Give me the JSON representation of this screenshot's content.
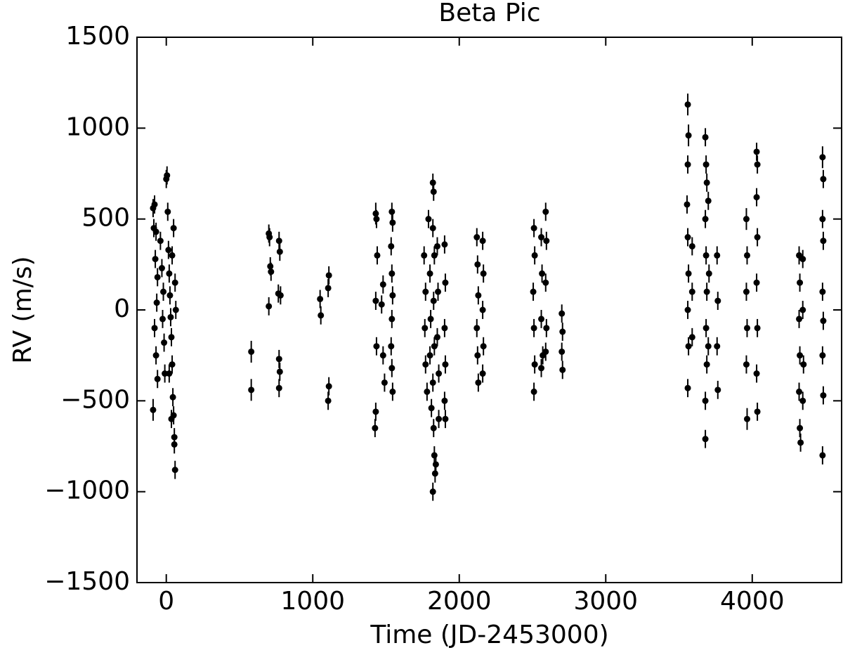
{
  "chart_data": {
    "type": "scatter",
    "title": "Beta Pic",
    "x_label": "Time (JD-2453000)",
    "y_label": "RV (m/s)",
    "color": "#000000",
    "xlim": [
      -200,
      4610
    ],
    "ylim": [
      -1500,
      1500
    ],
    "xticks": [
      0,
      1000,
      2000,
      3000,
      4000
    ],
    "yticks": [
      {
        "value": -1500,
        "label": "−1500"
      },
      {
        "value": -1000,
        "label": "−1000"
      },
      {
        "value": -500,
        "label": "−500"
      },
      0,
      500,
      1000,
      1500
    ],
    "points": [
      {
        "x": -90,
        "y": 560,
        "yerr": 50
      },
      {
        "x": -80,
        "y": 580,
        "yerr": 50
      },
      {
        "x": -85,
        "y": 450,
        "yerr": 50
      },
      {
        "x": -70,
        "y": 430,
        "yerr": 50
      },
      {
        "x": -75,
        "y": 280,
        "yerr": 50
      },
      {
        "x": -60,
        "y": 180,
        "yerr": 50
      },
      {
        "x": -65,
        "y": 40,
        "yerr": 50
      },
      {
        "x": -80,
        "y": -100,
        "yerr": 50
      },
      {
        "x": -70,
        "y": -250,
        "yerr": 50
      },
      {
        "x": -60,
        "y": -380,
        "yerr": 50
      },
      {
        "x": -90,
        "y": -550,
        "yerr": 60
      },
      {
        "x": -40,
        "y": 380,
        "yerr": 50
      },
      {
        "x": -30,
        "y": 230,
        "yerr": 50
      },
      {
        "x": -20,
        "y": 100,
        "yerr": 50
      },
      {
        "x": -25,
        "y": -50,
        "yerr": 50
      },
      {
        "x": -15,
        "y": -180,
        "yerr": 50
      },
      {
        "x": -10,
        "y": -350,
        "yerr": 50
      },
      {
        "x": 0,
        "y": 720,
        "yerr": 50
      },
      {
        "x": 5,
        "y": 740,
        "yerr": 50
      },
      {
        "x": 10,
        "y": 540,
        "yerr": 50
      },
      {
        "x": 15,
        "y": 330,
        "yerr": 50
      },
      {
        "x": 20,
        "y": 200,
        "yerr": 50
      },
      {
        "x": 25,
        "y": 80,
        "yerr": 50
      },
      {
        "x": 30,
        "y": -40,
        "yerr": 50
      },
      {
        "x": 35,
        "y": -150,
        "yerr": 50
      },
      {
        "x": 40,
        "y": -300,
        "yerr": 50
      },
      {
        "x": 45,
        "y": -480,
        "yerr": 50
      },
      {
        "x": 50,
        "y": -580,
        "yerr": 50
      },
      {
        "x": 55,
        "y": -700,
        "yerr": 50
      },
      {
        "x": 55,
        "y": -740,
        "yerr": 50
      },
      {
        "x": 60,
        "y": -880,
        "yerr": 50
      },
      {
        "x": 50,
        "y": 450,
        "yerr": 50
      },
      {
        "x": 40,
        "y": 300,
        "yerr": 50
      },
      {
        "x": 60,
        "y": 150,
        "yerr": 50
      },
      {
        "x": 65,
        "y": 0,
        "yerr": 50
      },
      {
        "x": 35,
        "y": -600,
        "yerr": 50
      },
      {
        "x": 20,
        "y": -350,
        "yerr": 50
      },
      {
        "x": 580,
        "y": -230,
        "yerr": 60
      },
      {
        "x": 580,
        "y": -440,
        "yerr": 60
      },
      {
        "x": 700,
        "y": 420,
        "yerr": 50
      },
      {
        "x": 705,
        "y": 400,
        "yerr": 50
      },
      {
        "x": 710,
        "y": 240,
        "yerr": 50
      },
      {
        "x": 715,
        "y": 210,
        "yerr": 50
      },
      {
        "x": 700,
        "y": 20,
        "yerr": 50
      },
      {
        "x": 770,
        "y": 380,
        "yerr": 50
      },
      {
        "x": 775,
        "y": 320,
        "yerr": 50
      },
      {
        "x": 765,
        "y": 90,
        "yerr": 50
      },
      {
        "x": 780,
        "y": 80,
        "yerr": 50
      },
      {
        "x": 770,
        "y": -270,
        "yerr": 50
      },
      {
        "x": 775,
        "y": -340,
        "yerr": 50
      },
      {
        "x": 770,
        "y": -430,
        "yerr": 50
      },
      {
        "x": 1050,
        "y": 60,
        "yerr": 50
      },
      {
        "x": 1055,
        "y": -30,
        "yerr": 50
      },
      {
        "x": 1110,
        "y": 190,
        "yerr": 50
      },
      {
        "x": 1105,
        "y": 120,
        "yerr": 50
      },
      {
        "x": 1110,
        "y": -420,
        "yerr": 50
      },
      {
        "x": 1105,
        "y": -500,
        "yerr": 50
      },
      {
        "x": 1430,
        "y": 530,
        "yerr": 60
      },
      {
        "x": 1435,
        "y": 500,
        "yerr": 50
      },
      {
        "x": 1440,
        "y": 300,
        "yerr": 50
      },
      {
        "x": 1430,
        "y": 50,
        "yerr": 50
      },
      {
        "x": 1435,
        "y": -200,
        "yerr": 50
      },
      {
        "x": 1430,
        "y": -560,
        "yerr": 50
      },
      {
        "x": 1425,
        "y": -650,
        "yerr": 50
      },
      {
        "x": 1480,
        "y": 140,
        "yerr": 50
      },
      {
        "x": 1470,
        "y": 30,
        "yerr": 50
      },
      {
        "x": 1490,
        "y": -400,
        "yerr": 50
      },
      {
        "x": 1480,
        "y": -250,
        "yerr": 50
      },
      {
        "x": 1540,
        "y": 540,
        "yerr": 50
      },
      {
        "x": 1545,
        "y": 480,
        "yerr": 50
      },
      {
        "x": 1535,
        "y": 350,
        "yerr": 50
      },
      {
        "x": 1540,
        "y": 200,
        "yerr": 50
      },
      {
        "x": 1545,
        "y": 80,
        "yerr": 50
      },
      {
        "x": 1540,
        "y": -50,
        "yerr": 50
      },
      {
        "x": 1535,
        "y": -200,
        "yerr": 50
      },
      {
        "x": 1540,
        "y": -320,
        "yerr": 50
      },
      {
        "x": 1545,
        "y": -450,
        "yerr": 50
      },
      {
        "x": 1760,
        "y": 300,
        "yerr": 50
      },
      {
        "x": 1770,
        "y": 100,
        "yerr": 50
      },
      {
        "x": 1765,
        "y": -100,
        "yerr": 50
      },
      {
        "x": 1770,
        "y": -300,
        "yerr": 50
      },
      {
        "x": 1780,
        "y": -450,
        "yerr": 50
      },
      {
        "x": 1790,
        "y": 500,
        "yerr": 50
      },
      {
        "x": 1800,
        "y": 200,
        "yerr": 50
      },
      {
        "x": 1805,
        "y": -50,
        "yerr": 50
      },
      {
        "x": 1800,
        "y": -250,
        "yerr": 50
      },
      {
        "x": 1810,
        "y": -540,
        "yerr": 50
      },
      {
        "x": 1820,
        "y": 700,
        "yerr": 50
      },
      {
        "x": 1825,
        "y": 650,
        "yerr": 50
      },
      {
        "x": 1820,
        "y": 450,
        "yerr": 50
      },
      {
        "x": 1830,
        "y": 300,
        "yerr": 50
      },
      {
        "x": 1825,
        "y": 50,
        "yerr": 50
      },
      {
        "x": 1830,
        "y": -200,
        "yerr": 50
      },
      {
        "x": 1820,
        "y": -400,
        "yerr": 50
      },
      {
        "x": 1825,
        "y": -650,
        "yerr": 50
      },
      {
        "x": 1830,
        "y": -800,
        "yerr": 50
      },
      {
        "x": 1835,
        "y": -900,
        "yerr": 50
      },
      {
        "x": 1820,
        "y": -1000,
        "yerr": 50
      },
      {
        "x": 1840,
        "y": -850,
        "yerr": 50
      },
      {
        "x": 1850,
        "y": 350,
        "yerr": 50
      },
      {
        "x": 1855,
        "y": 100,
        "yerr": 50
      },
      {
        "x": 1850,
        "y": -150,
        "yerr": 50
      },
      {
        "x": 1860,
        "y": -350,
        "yerr": 50
      },
      {
        "x": 1860,
        "y": -600,
        "yerr": 50
      },
      {
        "x": 1900,
        "y": 360,
        "yerr": 50
      },
      {
        "x": 1905,
        "y": 150,
        "yerr": 50
      },
      {
        "x": 1900,
        "y": -100,
        "yerr": 50
      },
      {
        "x": 1905,
        "y": -300,
        "yerr": 50
      },
      {
        "x": 1900,
        "y": -500,
        "yerr": 50
      },
      {
        "x": 1905,
        "y": -600,
        "yerr": 50
      },
      {
        "x": 2120,
        "y": 400,
        "yerr": 50
      },
      {
        "x": 2125,
        "y": 250,
        "yerr": 50
      },
      {
        "x": 2130,
        "y": 80,
        "yerr": 50
      },
      {
        "x": 2120,
        "y": -100,
        "yerr": 50
      },
      {
        "x": 2125,
        "y": -250,
        "yerr": 50
      },
      {
        "x": 2130,
        "y": -400,
        "yerr": 50
      },
      {
        "x": 2160,
        "y": 380,
        "yerr": 50
      },
      {
        "x": 2165,
        "y": 200,
        "yerr": 50
      },
      {
        "x": 2160,
        "y": 0,
        "yerr": 50
      },
      {
        "x": 2165,
        "y": -200,
        "yerr": 50
      },
      {
        "x": 2160,
        "y": -350,
        "yerr": 50
      },
      {
        "x": 2510,
        "y": 450,
        "yerr": 50
      },
      {
        "x": 2515,
        "y": 300,
        "yerr": 50
      },
      {
        "x": 2505,
        "y": 100,
        "yerr": 50
      },
      {
        "x": 2510,
        "y": -100,
        "yerr": 50
      },
      {
        "x": 2515,
        "y": -300,
        "yerr": 50
      },
      {
        "x": 2510,
        "y": -450,
        "yerr": 50
      },
      {
        "x": 2560,
        "y": 400,
        "yerr": 50
      },
      {
        "x": 2565,
        "y": 200,
        "yerr": 50
      },
      {
        "x": 2560,
        "y": -50,
        "yerr": 50
      },
      {
        "x": 2570,
        "y": -250,
        "yerr": 50
      },
      {
        "x": 2560,
        "y": -320,
        "yerr": 50
      },
      {
        "x": 2590,
        "y": 540,
        "yerr": 50
      },
      {
        "x": 2595,
        "y": 380,
        "yerr": 50
      },
      {
        "x": 2590,
        "y": 150,
        "yerr": 50
      },
      {
        "x": 2595,
        "y": -100,
        "yerr": 50
      },
      {
        "x": 2590,
        "y": -230,
        "yerr": 50
      },
      {
        "x": 2700,
        "y": -20,
        "yerr": 50
      },
      {
        "x": 2705,
        "y": -120,
        "yerr": 50
      },
      {
        "x": 2700,
        "y": -230,
        "yerr": 50
      },
      {
        "x": 2705,
        "y": -330,
        "yerr": 50
      },
      {
        "x": 3560,
        "y": 1130,
        "yerr": 60
      },
      {
        "x": 3565,
        "y": 960,
        "yerr": 60
      },
      {
        "x": 3560,
        "y": 800,
        "yerr": 50
      },
      {
        "x": 3555,
        "y": 580,
        "yerr": 50
      },
      {
        "x": 3560,
        "y": 400,
        "yerr": 50
      },
      {
        "x": 3565,
        "y": 200,
        "yerr": 50
      },
      {
        "x": 3560,
        "y": 0,
        "yerr": 50
      },
      {
        "x": 3565,
        "y": -200,
        "yerr": 50
      },
      {
        "x": 3560,
        "y": -430,
        "yerr": 50
      },
      {
        "x": 3590,
        "y": 350,
        "yerr": 50
      },
      {
        "x": 3590,
        "y": 100,
        "yerr": 50
      },
      {
        "x": 3590,
        "y": -150,
        "yerr": 50
      },
      {
        "x": 3680,
        "y": 950,
        "yerr": 50
      },
      {
        "x": 3685,
        "y": 800,
        "yerr": 50
      },
      {
        "x": 3690,
        "y": 700,
        "yerr": 50
      },
      {
        "x": 3680,
        "y": 500,
        "yerr": 50
      },
      {
        "x": 3685,
        "y": 300,
        "yerr": 50
      },
      {
        "x": 3690,
        "y": 100,
        "yerr": 50
      },
      {
        "x": 3685,
        "y": -100,
        "yerr": 50
      },
      {
        "x": 3690,
        "y": -300,
        "yerr": 50
      },
      {
        "x": 3680,
        "y": -500,
        "yerr": 50
      },
      {
        "x": 3680,
        "y": -710,
        "yerr": 50
      },
      {
        "x": 3700,
        "y": 600,
        "yerr": 50
      },
      {
        "x": 3705,
        "y": 200,
        "yerr": 50
      },
      {
        "x": 3700,
        "y": -200,
        "yerr": 50
      },
      {
        "x": 3760,
        "y": 300,
        "yerr": 50
      },
      {
        "x": 3765,
        "y": 50,
        "yerr": 50
      },
      {
        "x": 3760,
        "y": -200,
        "yerr": 50
      },
      {
        "x": 3765,
        "y": -440,
        "yerr": 50
      },
      {
        "x": 3960,
        "y": 500,
        "yerr": 60
      },
      {
        "x": 3965,
        "y": 300,
        "yerr": 50
      },
      {
        "x": 3960,
        "y": 100,
        "yerr": 50
      },
      {
        "x": 3965,
        "y": -100,
        "yerr": 50
      },
      {
        "x": 3960,
        "y": -300,
        "yerr": 50
      },
      {
        "x": 3965,
        "y": -600,
        "yerr": 60
      },
      {
        "x": 4030,
        "y": 870,
        "yerr": 50
      },
      {
        "x": 4035,
        "y": 800,
        "yerr": 50
      },
      {
        "x": 4030,
        "y": 620,
        "yerr": 50
      },
      {
        "x": 4035,
        "y": 400,
        "yerr": 50
      },
      {
        "x": 4030,
        "y": 150,
        "yerr": 50
      },
      {
        "x": 4035,
        "y": -100,
        "yerr": 50
      },
      {
        "x": 4030,
        "y": -350,
        "yerr": 50
      },
      {
        "x": 4035,
        "y": -560,
        "yerr": 50
      },
      {
        "x": 4320,
        "y": 300,
        "yerr": 50
      },
      {
        "x": 4325,
        "y": 150,
        "yerr": 50
      },
      {
        "x": 4320,
        "y": -50,
        "yerr": 50
      },
      {
        "x": 4325,
        "y": -250,
        "yerr": 50
      },
      {
        "x": 4320,
        "y": -450,
        "yerr": 50
      },
      {
        "x": 4325,
        "y": -650,
        "yerr": 50
      },
      {
        "x": 4330,
        "y": -730,
        "yerr": 50
      },
      {
        "x": 4345,
        "y": 280,
        "yerr": 50
      },
      {
        "x": 4345,
        "y": 0,
        "yerr": 50
      },
      {
        "x": 4350,
        "y": -300,
        "yerr": 50
      },
      {
        "x": 4345,
        "y": -500,
        "yerr": 50
      },
      {
        "x": 4480,
        "y": 840,
        "yerr": 60
      },
      {
        "x": 4485,
        "y": 720,
        "yerr": 50
      },
      {
        "x": 4480,
        "y": 500,
        "yerr": 50
      },
      {
        "x": 4485,
        "y": 380,
        "yerr": 50
      },
      {
        "x": 4480,
        "y": 100,
        "yerr": 50
      },
      {
        "x": 4485,
        "y": -60,
        "yerr": 50
      },
      {
        "x": 4480,
        "y": -250,
        "yerr": 50
      },
      {
        "x": 4485,
        "y": -470,
        "yerr": 50
      },
      {
        "x": 4480,
        "y": -800,
        "yerr": 50
      }
    ]
  }
}
